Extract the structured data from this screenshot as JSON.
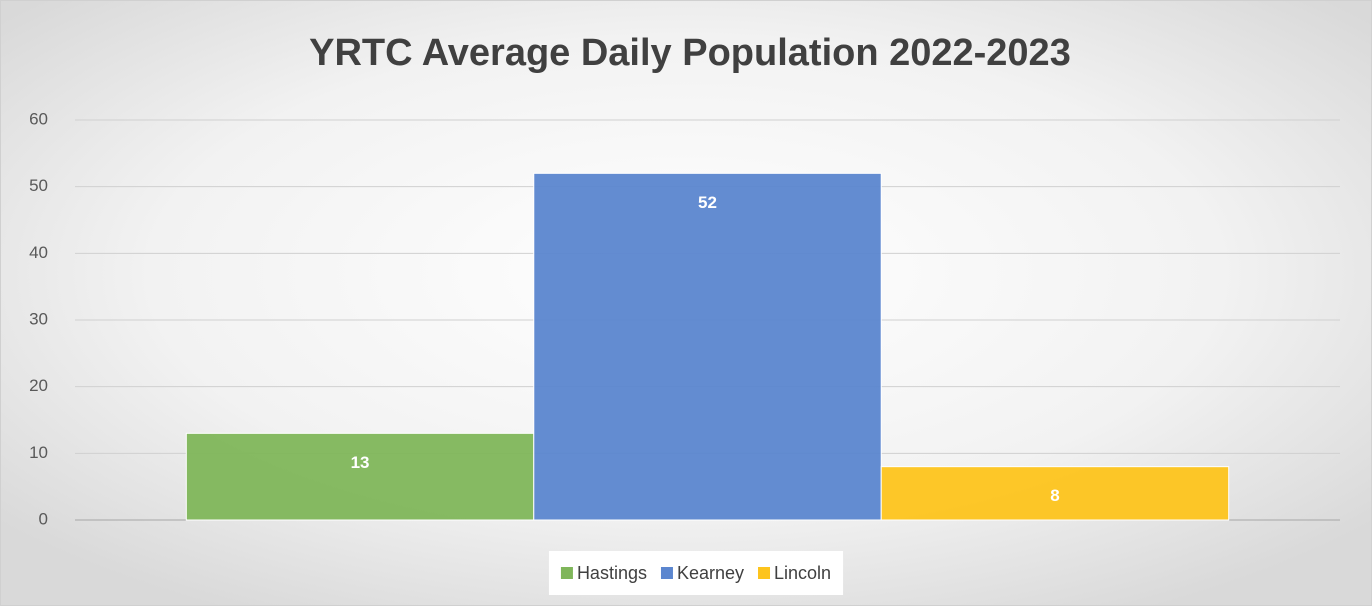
{
  "chart_data": {
    "type": "bar",
    "title": "YRTC Average Daily Population 2022-2023",
    "categories": [
      null
    ],
    "series": [
      {
        "name": "Hastings",
        "color": "#7fb65a",
        "values": [
          13
        ]
      },
      {
        "name": "Kearney",
        "color": "#5b86cf",
        "values": [
          52
        ]
      },
      {
        "name": "Lincoln",
        "color": "#fdc41c",
        "values": [
          8
        ]
      }
    ],
    "ylim": [
      0,
      60
    ],
    "yticks": [
      0,
      10,
      20,
      30,
      40,
      50,
      60
    ],
    "grid": true,
    "legend": "bottom"
  }
}
